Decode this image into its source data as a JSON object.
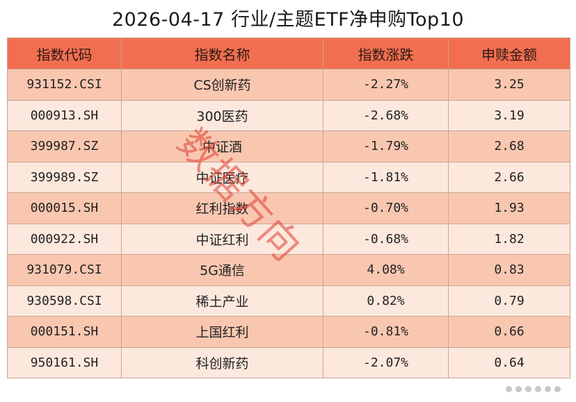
{
  "title": "2026-04-17 行业/主题ETF净申购Top10",
  "headers": [
    "指数代码",
    "指数名称",
    "指数涨跌",
    "申赎金额"
  ],
  "rows": [
    {
      "code": "931152.CSI",
      "name": "CS创新药",
      "change": "-2.27%",
      "amount": "3.25"
    },
    {
      "code": "000913.SH",
      "name": "300医药",
      "change": "-2.68%",
      "amount": "3.19"
    },
    {
      "code": "399987.SZ",
      "name": "中证酒",
      "change": "-1.79%",
      "amount": "2.68"
    },
    {
      "code": "399989.SZ",
      "name": "中证医疗",
      "change": "-1.81%",
      "amount": "2.66"
    },
    {
      "code": "000015.SH",
      "name": "红利指数",
      "change": "-0.70%",
      "amount": "1.93"
    },
    {
      "code": "000922.SH",
      "name": "中证红利",
      "change": "-0.68%",
      "amount": "1.82"
    },
    {
      "code": "931079.CSI",
      "name": "5G通信",
      "change": "4.08%",
      "amount": "0.83"
    },
    {
      "code": "930598.CSI",
      "name": "稀土产业",
      "change": "0.82%",
      "amount": "0.79"
    },
    {
      "code": "000151.SH",
      "name": "上国红利",
      "change": "-0.81%",
      "amount": "0.66"
    },
    {
      "code": "950161.SH",
      "name": "科创新药",
      "change": "-2.07%",
      "amount": "0.64"
    }
  ],
  "watermark": "数据方向",
  "colors": {
    "header": "#f26e50",
    "row_odd": "#f9c7b0",
    "row_even": "#fde8dd"
  }
}
